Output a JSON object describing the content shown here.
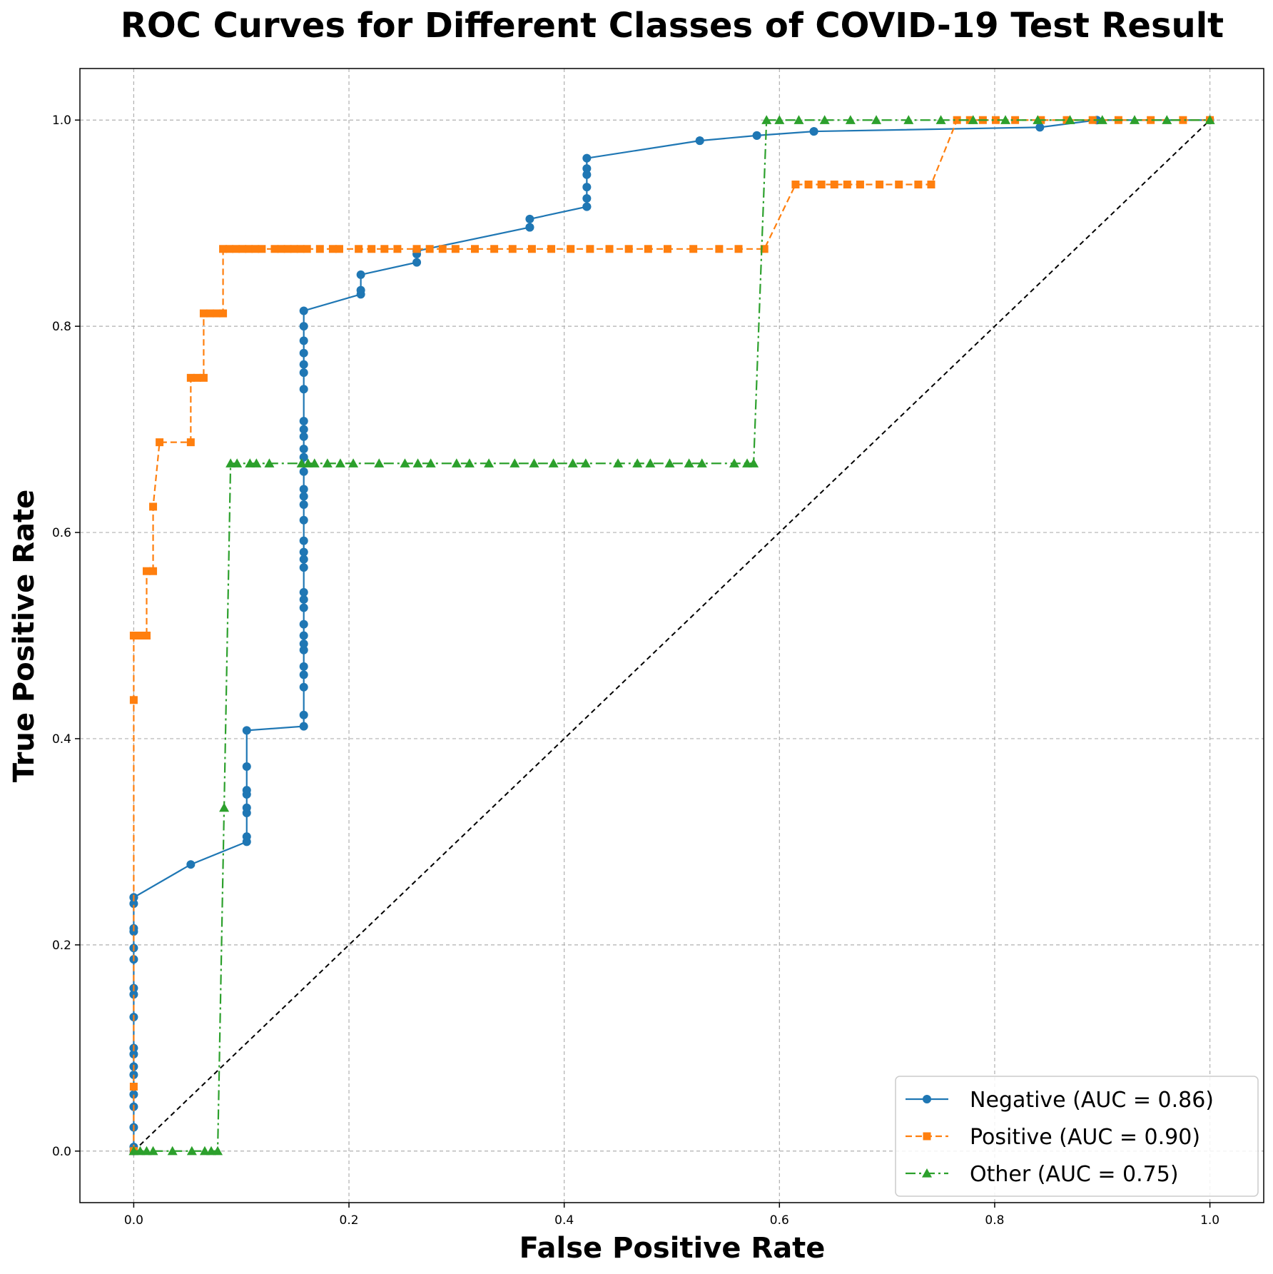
{
  "chart_data": {
    "type": "line",
    "title": "ROC Curves for Different Classes of COVID-19 Test Result",
    "xlabel": "False Positive Rate",
    "ylabel": "True Positive Rate",
    "xlim": [
      -0.05,
      1.05
    ],
    "ylim": [
      -0.05,
      1.05
    ],
    "xticks": [
      0.0,
      0.2,
      0.4,
      0.6,
      0.8,
      1.0
    ],
    "yticks": [
      0.0,
      0.2,
      0.4,
      0.6,
      0.8,
      1.0
    ],
    "xtick_labels": [
      "0.0",
      "0.2",
      "0.4",
      "0.6",
      "0.8",
      "1.0"
    ],
    "ytick_labels": [
      "0.0",
      "0.2",
      "0.4",
      "0.6",
      "0.8",
      "1.0"
    ],
    "grid": true,
    "legend_position": "bottom-right",
    "series": [
      {
        "name": "Negative (AUC = 0.86)",
        "color": "#1f77b4",
        "line_style": "solid",
        "marker": "circle",
        "x": [
          0.0,
          0.0,
          0.0,
          0.0,
          0.0,
          0.0,
          0.0,
          0.0,
          0.0,
          0.0,
          0.0,
          0.0,
          0.0,
          0.0,
          0.0,
          0.0,
          0.0,
          0.0,
          0.0,
          0.053,
          0.105,
          0.105,
          0.105,
          0.105,
          0.105,
          0.105,
          0.105,
          0.105,
          0.158,
          0.158,
          0.158,
          0.158,
          0.158,
          0.158,
          0.158,
          0.158,
          0.158,
          0.158,
          0.158,
          0.158,
          0.158,
          0.158,
          0.158,
          0.158,
          0.158,
          0.158,
          0.158,
          0.158,
          0.158,
          0.158,
          0.158,
          0.158,
          0.158,
          0.158,
          0.158,
          0.158,
          0.158,
          0.158,
          0.158,
          0.158,
          0.158,
          0.211,
          0.211,
          0.211,
          0.263,
          0.263,
          0.263,
          0.368,
          0.368,
          0.368,
          0.421,
          0.421,
          0.421,
          0.421,
          0.421,
          0.421,
          0.421,
          0.526,
          0.526,
          0.579,
          0.579,
          0.632,
          0.632,
          0.842,
          0.895,
          1.0
        ],
        "y": [
          0.0,
          0.004,
          0.023,
          0.043,
          0.055,
          0.074,
          0.082,
          0.094,
          0.1,
          0.13,
          0.152,
          0.158,
          0.186,
          0.197,
          0.213,
          0.216,
          0.24,
          0.246,
          0.246,
          0.278,
          0.3,
          0.305,
          0.328,
          0.333,
          0.346,
          0.35,
          0.373,
          0.408,
          0.412,
          0.423,
          0.45,
          0.462,
          0.47,
          0.486,
          0.492,
          0.5,
          0.511,
          0.527,
          0.535,
          0.542,
          0.566,
          0.574,
          0.581,
          0.592,
          0.612,
          0.627,
          0.635,
          0.642,
          0.659,
          0.673,
          0.681,
          0.693,
          0.7,
          0.708,
          0.739,
          0.755,
          0.763,
          0.774,
          0.786,
          0.8,
          0.815,
          0.831,
          0.835,
          0.85,
          0.862,
          0.87,
          0.873,
          0.896,
          0.896,
          0.904,
          0.916,
          0.916,
          0.924,
          0.935,
          0.947,
          0.953,
          0.963,
          0.98,
          0.98,
          0.985,
          0.985,
          0.989,
          0.989,
          0.993,
          1.0,
          1.0
        ]
      },
      {
        "name": "Positive (AUC = 0.90)",
        "color": "#ff7f0e",
        "line_style": "dashed",
        "marker": "square",
        "x": [
          0.0,
          0.0,
          0.0,
          0.0,
          0.006,
          0.012,
          0.012,
          0.018,
          0.018,
          0.024,
          0.053,
          0.053,
          0.059,
          0.065,
          0.065,
          0.071,
          0.077,
          0.083,
          0.083,
          0.089,
          0.095,
          0.101,
          0.107,
          0.113,
          0.119,
          0.131,
          0.137,
          0.143,
          0.149,
          0.155,
          0.161,
          0.173,
          0.185,
          0.191,
          0.209,
          0.221,
          0.233,
          0.245,
          0.263,
          0.275,
          0.287,
          0.299,
          0.317,
          0.335,
          0.352,
          0.37,
          0.388,
          0.406,
          0.424,
          0.442,
          0.46,
          0.478,
          0.496,
          0.52,
          0.544,
          0.562,
          0.586,
          0.615,
          0.627,
          0.639,
          0.651,
          0.663,
          0.675,
          0.693,
          0.711,
          0.729,
          0.741,
          0.765,
          0.777,
          0.789,
          0.801,
          0.819,
          0.843,
          0.867,
          0.891,
          0.915,
          0.945,
          0.975,
          1.0
        ],
        "y": [
          0.0,
          0.0625,
          0.4375,
          0.5,
          0.5,
          0.5,
          0.5625,
          0.5625,
          0.625,
          0.6875,
          0.6875,
          0.75,
          0.75,
          0.75,
          0.8125,
          0.8125,
          0.8125,
          0.8125,
          0.875,
          0.875,
          0.875,
          0.875,
          0.875,
          0.875,
          0.875,
          0.875,
          0.875,
          0.875,
          0.875,
          0.875,
          0.875,
          0.875,
          0.875,
          0.875,
          0.875,
          0.875,
          0.875,
          0.875,
          0.875,
          0.875,
          0.875,
          0.875,
          0.875,
          0.875,
          0.875,
          0.875,
          0.875,
          0.875,
          0.875,
          0.875,
          0.875,
          0.875,
          0.875,
          0.875,
          0.875,
          0.875,
          0.875,
          0.9375,
          0.9375,
          0.9375,
          0.9375,
          0.9375,
          0.9375,
          0.9375,
          0.9375,
          0.9375,
          0.9375,
          1.0,
          1.0,
          1.0,
          1.0,
          1.0,
          1.0,
          1.0,
          1.0,
          1.0,
          1.0,
          1.0,
          1.0
        ]
      },
      {
        "name": "Other (AUC = 0.75)",
        "color": "#2ca02c",
        "line_style": "dashdot",
        "marker": "triangle",
        "x": [
          0.0,
          0.006,
          0.012,
          0.018,
          0.036,
          0.054,
          0.066,
          0.072,
          0.078,
          0.084,
          0.09,
          0.096,
          0.108,
          0.114,
          0.126,
          0.156,
          0.162,
          0.168,
          0.18,
          0.192,
          0.204,
          0.228,
          0.252,
          0.264,
          0.276,
          0.3,
          0.312,
          0.33,
          0.354,
          0.372,
          0.39,
          0.408,
          0.42,
          0.45,
          0.468,
          0.48,
          0.498,
          0.516,
          0.528,
          0.558,
          0.57,
          0.576,
          0.588,
          0.6,
          0.618,
          0.642,
          0.666,
          0.69,
          0.72,
          0.75,
          0.78,
          0.81,
          0.84,
          0.87,
          0.9,
          0.93,
          0.96,
          1.0
        ],
        "y": [
          0.0,
          0.0,
          0.0,
          0.0,
          0.0,
          0.0,
          0.0,
          0.0,
          0.0,
          0.333,
          0.667,
          0.667,
          0.667,
          0.667,
          0.667,
          0.667,
          0.667,
          0.667,
          0.667,
          0.667,
          0.667,
          0.667,
          0.667,
          0.667,
          0.667,
          0.667,
          0.667,
          0.667,
          0.667,
          0.667,
          0.667,
          0.667,
          0.667,
          0.667,
          0.667,
          0.667,
          0.667,
          0.667,
          0.667,
          0.667,
          0.667,
          0.667,
          1.0,
          1.0,
          1.0,
          1.0,
          1.0,
          1.0,
          1.0,
          1.0,
          1.0,
          1.0,
          1.0,
          1.0,
          1.0,
          1.0,
          1.0,
          1.0
        ]
      }
    ],
    "reference_line": {
      "x": [
        0.0,
        1.0
      ],
      "y": [
        0.0,
        1.0
      ],
      "color": "#000000",
      "line_style": "dashed"
    }
  }
}
